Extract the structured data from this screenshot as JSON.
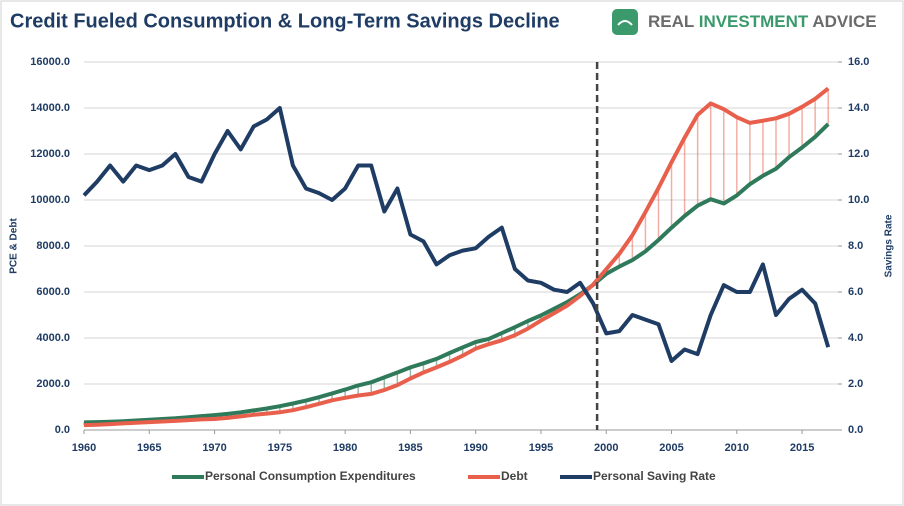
{
  "chart_data": {
    "type": "line",
    "title": "Credit Fueled Consumption & Long-Term Savings Decline",
    "brand": [
      "REAL",
      "INVESTMENT",
      "ADVICE"
    ],
    "ylabel": "PCE & Debt",
    "y2label": "Savings Rate",
    "x": [
      1960,
      1961,
      1962,
      1963,
      1964,
      1965,
      1966,
      1967,
      1968,
      1969,
      1970,
      1971,
      1972,
      1973,
      1974,
      1975,
      1976,
      1977,
      1978,
      1979,
      1980,
      1981,
      1982,
      1983,
      1984,
      1985,
      1986,
      1987,
      1988,
      1989,
      1990,
      1991,
      1992,
      1993,
      1994,
      1995,
      1996,
      1997,
      1998,
      1999,
      2000,
      2001,
      2002,
      2003,
      2004,
      2005,
      2006,
      2007,
      2008,
      2009,
      2010,
      2011,
      2012,
      2013,
      2014,
      2015,
      2016,
      2017
    ],
    "series": [
      {
        "name": "Personal Consumption Expenditures",
        "color": "#2f7a5a",
        "axis": "y",
        "values": [
          331,
          342,
          363,
          383,
          411,
          444,
          480,
          507,
          558,
          605,
          648,
          702,
          770,
          852,
          933,
          1034,
          1152,
          1279,
          1428,
          1593,
          1755,
          1938,
          2074,
          2287,
          2498,
          2723,
          2898,
          3092,
          3346,
          3592,
          3826,
          3960,
          4215,
          4471,
          4741,
          4984,
          5269,
          5561,
          5903,
          6307,
          6792,
          7103,
          7385,
          7765,
          8260,
          8794,
          9304,
          9751,
          10036,
          9847,
          10202,
          10689,
          11051,
          11362,
          11863,
          12284,
          12749,
          13300
        ]
      },
      {
        "name": "Debt",
        "color": "#e8604c",
        "axis": "y",
        "values": [
          215,
          230,
          255,
          285,
          315,
          345,
          370,
          395,
          430,
          460,
          480,
          525,
          590,
          660,
          715,
          770,
          860,
          990,
          1140,
          1290,
          1400,
          1500,
          1570,
          1740,
          1950,
          2240,
          2500,
          2720,
          2960,
          3230,
          3540,
          3730,
          3900,
          4120,
          4410,
          4760,
          5080,
          5410,
          5830,
          6320,
          6990,
          7660,
          8470,
          9470,
          10520,
          11640,
          12710,
          13700,
          14200,
          13950,
          13600,
          13350,
          13450,
          13550,
          13750,
          14050,
          14400,
          14850
        ]
      },
      {
        "name": "Personal Saving Rate",
        "color": "#1f3c64",
        "axis": "y2",
        "values": [
          10.2,
          10.8,
          11.5,
          10.8,
          11.5,
          11.3,
          11.5,
          12.0,
          11.0,
          10.8,
          12.0,
          13.0,
          12.2,
          13.2,
          13.5,
          14.0,
          11.5,
          10.5,
          10.3,
          10.0,
          10.5,
          11.5,
          11.5,
          9.5,
          10.5,
          8.5,
          8.2,
          7.2,
          7.6,
          7.8,
          7.9,
          8.4,
          8.8,
          7.0,
          6.5,
          6.4,
          6.1,
          6.0,
          6.4,
          5.5,
          4.2,
          4.3,
          5.0,
          4.8,
          4.6,
          3.0,
          3.5,
          3.3,
          5.0,
          6.3,
          6.0,
          6.0,
          7.2,
          5.0,
          5.7,
          6.1,
          5.5,
          3.6
        ]
      }
    ],
    "vline": 1999.3,
    "xlim": [
      1960,
      2017.75
    ],
    "xticks": [
      1960,
      1965,
      1970,
      1975,
      1980,
      1985,
      1990,
      1995,
      2000,
      2005,
      2010,
      2015
    ],
    "ylim": [
      0,
      16000
    ],
    "yticks": [
      {
        "value": 0,
        "label": "0.0"
      },
      {
        "value": 2000,
        "label": "2000.0"
      },
      {
        "value": 4000,
        "label": "4000.0"
      },
      {
        "value": 6000,
        "label": "6000.0"
      },
      {
        "value": 8000,
        "label": "8000.0"
      },
      {
        "value": 10000,
        "label": "10000.0"
      },
      {
        "value": 12000,
        "label": "12000.0"
      },
      {
        "value": 14000,
        "label": "14000.0"
      },
      {
        "value": 16000,
        "label": "16000.0"
      }
    ],
    "y2lim": [
      0,
      16
    ],
    "y2ticks": [
      {
        "value": 0,
        "label": "0.0"
      },
      {
        "value": 2,
        "label": "2.0"
      },
      {
        "value": 4,
        "label": "4.0"
      },
      {
        "value": 6,
        "label": "6.0"
      },
      {
        "value": 8,
        "label": "8.0"
      },
      {
        "value": 10,
        "label": "10.0"
      },
      {
        "value": 12,
        "label": "12.0"
      },
      {
        "value": 14,
        "label": "14.0"
      },
      {
        "value": 16,
        "label": "16.0"
      }
    ],
    "grid": true,
    "legend": "bottom"
  }
}
